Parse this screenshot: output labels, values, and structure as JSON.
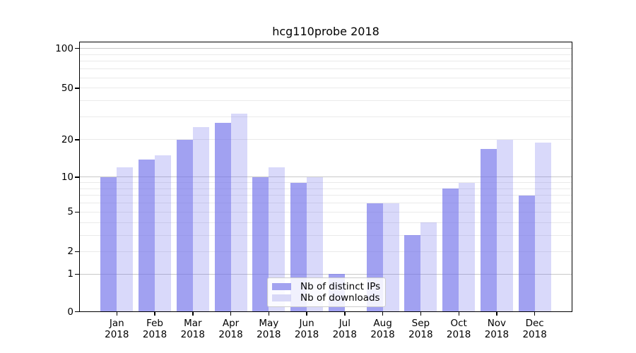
{
  "chart_data": {
    "type": "bar",
    "title": "hcg110probe 2018",
    "categories": [
      {
        "month": "Jan",
        "year": "2018"
      },
      {
        "month": "Feb",
        "year": "2018"
      },
      {
        "month": "Mar",
        "year": "2018"
      },
      {
        "month": "Apr",
        "year": "2018"
      },
      {
        "month": "May",
        "year": "2018"
      },
      {
        "month": "Jun",
        "year": "2018"
      },
      {
        "month": "Jul",
        "year": "2018"
      },
      {
        "month": "Aug",
        "year": "2018"
      },
      {
        "month": "Sep",
        "year": "2018"
      },
      {
        "month": "Oct",
        "year": "2018"
      },
      {
        "month": "Nov",
        "year": "2018"
      },
      {
        "month": "Dec",
        "year": "2018"
      }
    ],
    "series": [
      {
        "name": "Nb of distinct IPs",
        "values": [
          10,
          14,
          20,
          27,
          10,
          9,
          1,
          6,
          3,
          8,
          17,
          7
        ],
        "fill": "rgba(110,110,234,0.65)",
        "swatch": "#a2a2f0"
      },
      {
        "name": "Nb of downloads",
        "values": [
          12,
          15,
          25,
          32,
          12,
          10,
          0,
          6,
          4,
          9,
          20,
          19
        ],
        "fill": "rgba(110,110,234,0.26)",
        "swatch": "#d8d8f7"
      }
    ],
    "y_axis": {
      "labeled_ticks": [
        0,
        1,
        2,
        5,
        10,
        20,
        50,
        100
      ],
      "major_gridlines": [
        1,
        10,
        100
      ],
      "minor_gridlines": [
        2,
        3,
        4,
        5,
        6,
        7,
        8,
        9,
        20,
        30,
        40,
        50,
        60,
        70,
        80,
        90
      ],
      "scale": "quasi-log",
      "top_value": 117
    },
    "legend": {
      "position": "lower center"
    },
    "colors": {
      "grid_major": "#c8c8c8",
      "grid_minor": "#eaeaea",
      "spine": "#000000",
      "text": "#000000",
      "legend_border": "#cccccc"
    }
  }
}
